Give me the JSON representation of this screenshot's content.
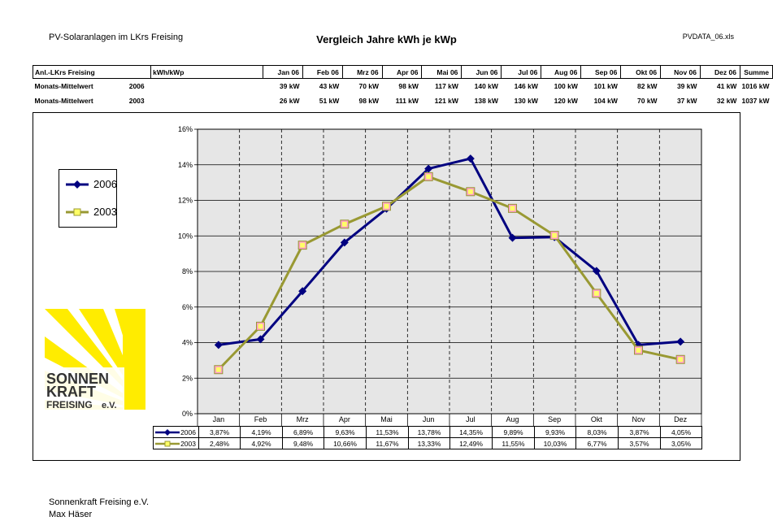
{
  "header": {
    "left": "PV-Solaranlagen im LKrs Freising",
    "title": "Vergleich Jahre kWh je kWp",
    "right": "PVDATA_06.xls"
  },
  "summary_table": {
    "col0": "Anl.-LKrs Freising",
    "col1": "kWh/kWp",
    "months": [
      "Jan 06",
      "Feb 06",
      "Mrz 06",
      "Apr 06",
      "Mai 06",
      "Jun 06",
      "Jul 06",
      "Aug 06",
      "Sep 06",
      "Okt 06",
      "Nov 06",
      "Dez 06"
    ],
    "total_label": "Summe",
    "rows": [
      {
        "label": "Monats-Mittelwert",
        "year": "2006",
        "values": [
          "39 kW",
          "43 kW",
          "70 kW",
          "98 kW",
          "117 kW",
          "140 kW",
          "146 kW",
          "100 kW",
          "101 kW",
          "82 kW",
          "39 kW",
          "41 kW"
        ],
        "total": "1016 kW"
      },
      {
        "label": "Monats-Mittelwert",
        "year": "2003",
        "values": [
          "26 kW",
          "51 kW",
          "98 kW",
          "111 kW",
          "121 kW",
          "138 kW",
          "130 kW",
          "120 kW",
          "104 kW",
          "70 kW",
          "37 kW",
          "32 kW"
        ],
        "total": "1037 kW"
      }
    ]
  },
  "chart_data": {
    "type": "line",
    "title": "",
    "xlabel": "",
    "ylabel": "",
    "categories": [
      "Jan",
      "Feb",
      "Mrz",
      "Apr",
      "Mai",
      "Jun",
      "Jul",
      "Aug",
      "Sep",
      "Okt",
      "Nov",
      "Dez"
    ],
    "y_ticks": [
      "0%",
      "2%",
      "4%",
      "6%",
      "8%",
      "10%",
      "12%",
      "14%",
      "16%"
    ],
    "ylim": [
      0,
      16
    ],
    "grid": true,
    "legend_position": "left",
    "plot_background": "#e6e6e6",
    "series": [
      {
        "name": "2006",
        "color": "#000080",
        "marker": "diamond",
        "values": [
          3.87,
          4.19,
          6.89,
          9.63,
          11.53,
          13.78,
          14.35,
          9.89,
          9.93,
          8.03,
          3.87,
          4.05
        ],
        "labels": [
          "3,87%",
          "4,19%",
          "6,89%",
          "9,63%",
          "11,53%",
          "13,78%",
          "14,35%",
          "9,89%",
          "9,93%",
          "8,03%",
          "3,87%",
          "4,05%"
        ]
      },
      {
        "name": "2003",
        "color": "#999933",
        "marker": "square",
        "marker_fill": "#ff99cc",
        "values": [
          2.48,
          4.92,
          9.48,
          10.66,
          11.67,
          13.33,
          12.49,
          11.55,
          10.03,
          6.77,
          3.57,
          3.05
        ],
        "labels": [
          "2,48%",
          "4,92%",
          "9,48%",
          "10,66%",
          "11,67%",
          "13,33%",
          "12,49%",
          "11,55%",
          "10,03%",
          "6,77%",
          "3,57%",
          "3,05%"
        ]
      }
    ]
  },
  "logo": {
    "line1": "SONNEN",
    "line2": "KRAFT",
    "line3": "FREISING",
    "line3_suffix": "e.V.",
    "color_yellow": "#ffec00",
    "color_text": "#333333"
  },
  "footer": {
    "line1": "Sonnenkraft Freising e.V.",
    "line2": "Max Häser"
  }
}
